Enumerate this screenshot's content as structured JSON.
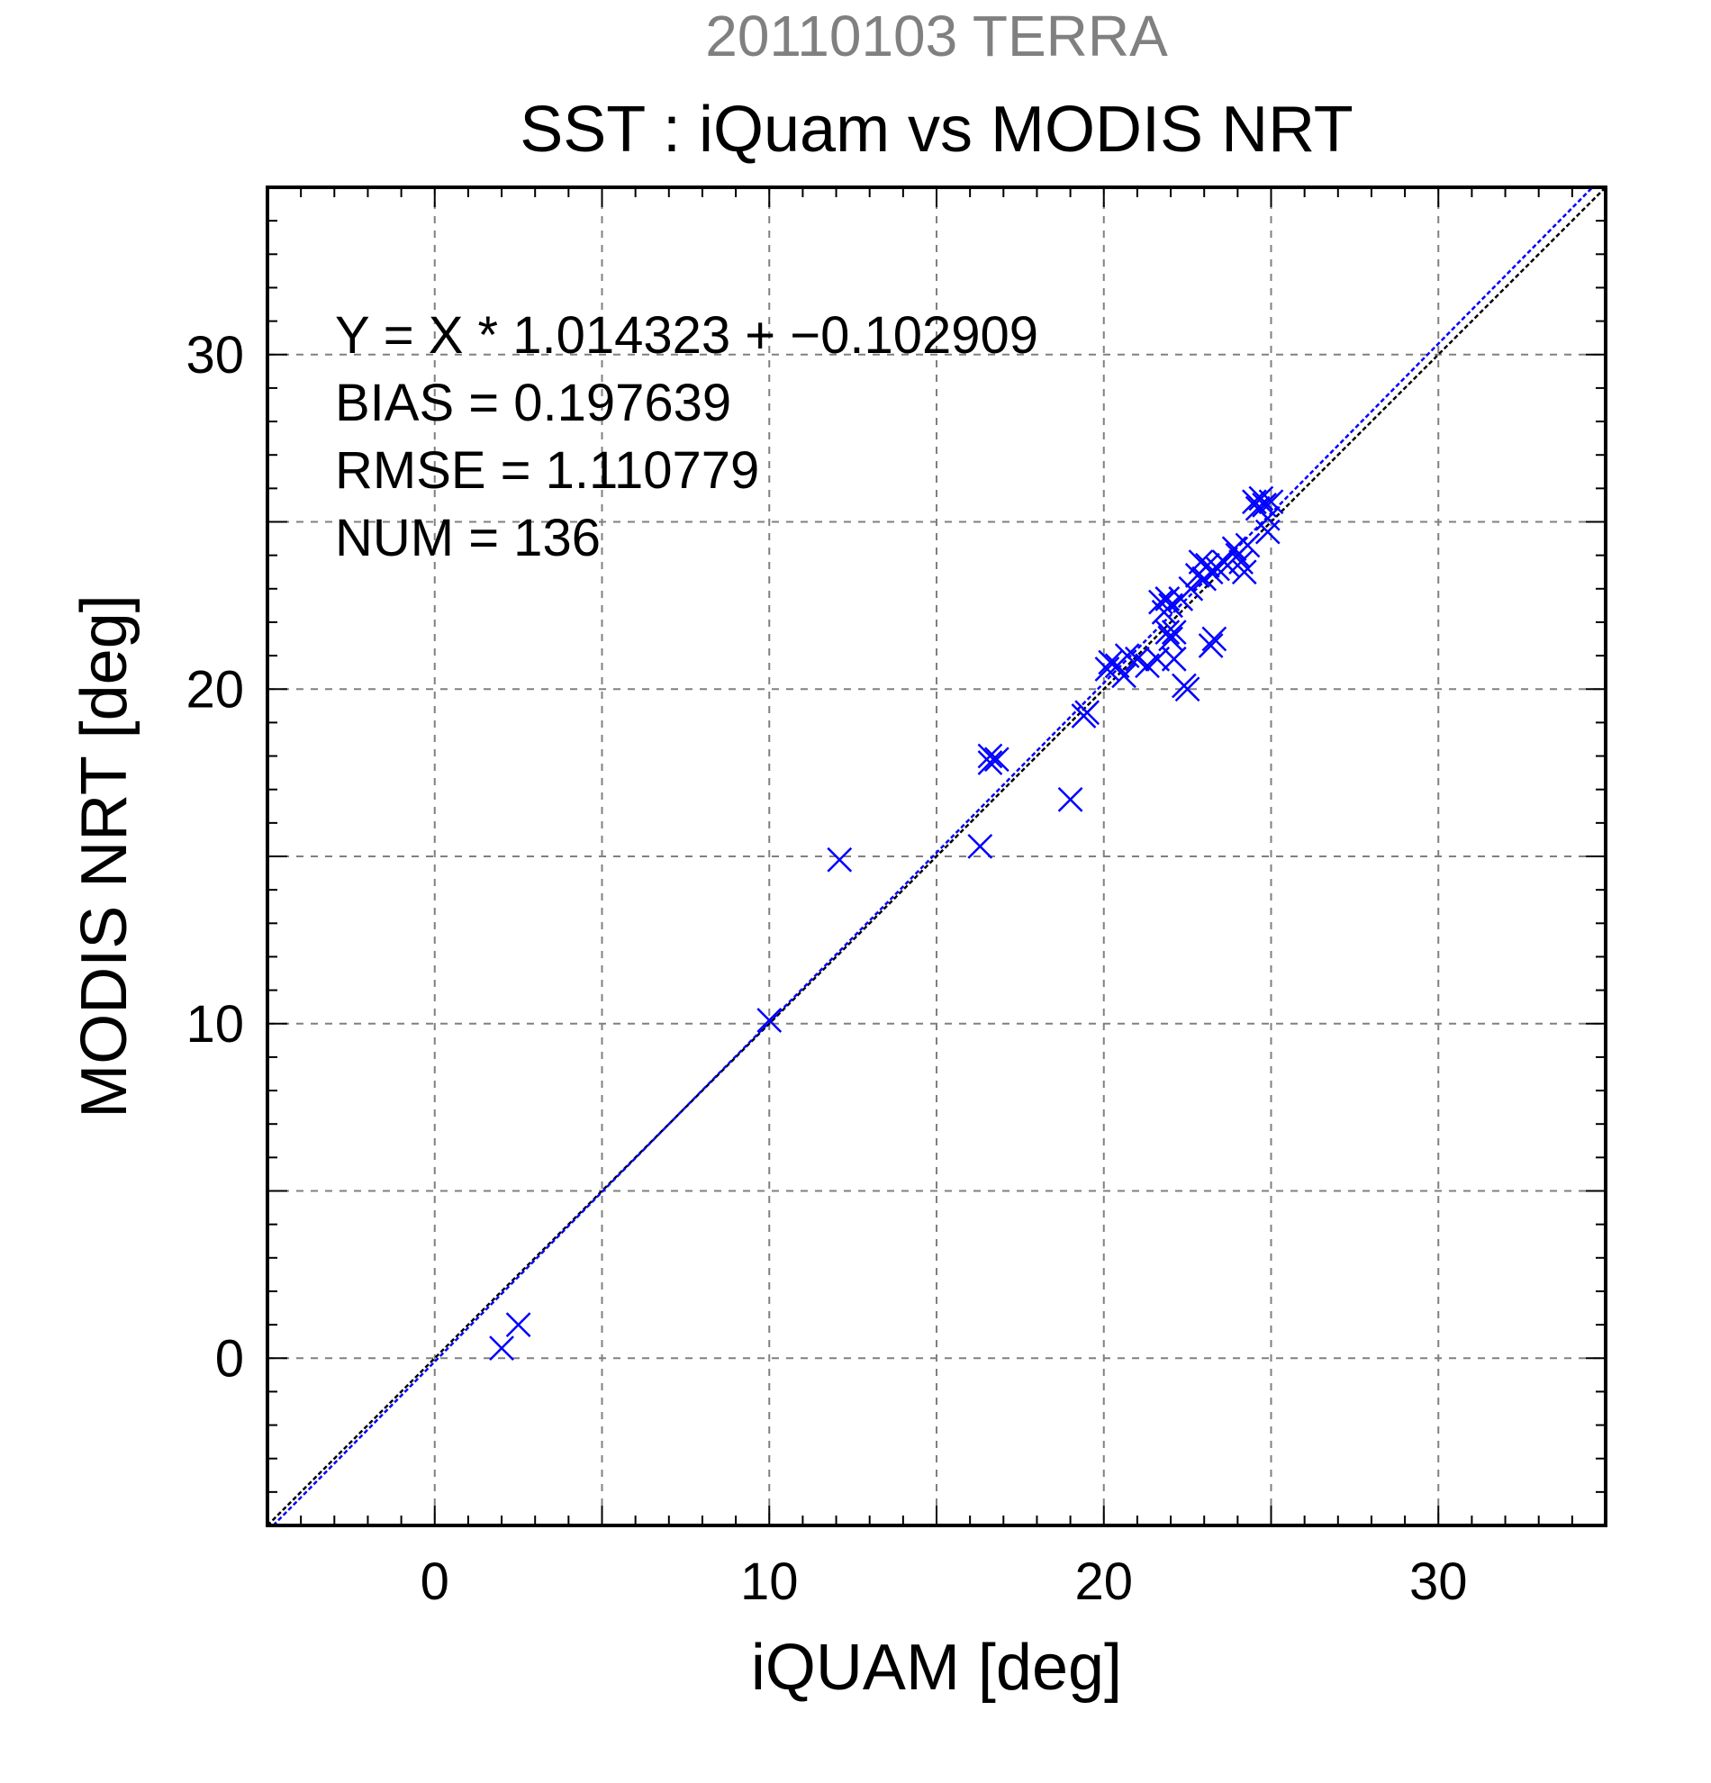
{
  "chart_data": {
    "type": "scatter",
    "title": "SST : iQuam vs MODIS NRT",
    "subtitle": "20110103 TERRA",
    "xlabel": "iQUAM [deg]",
    "ylabel": "MODIS NRT [deg]",
    "xlim": [
      -5,
      35
    ],
    "ylim": [
      -5,
      35
    ],
    "xticks": [
      0,
      10,
      20,
      30
    ],
    "yticks": [
      0,
      10,
      20,
      30
    ],
    "x_tick_labels": [
      "0",
      "10",
      "20",
      "30"
    ],
    "y_tick_labels": [
      "0",
      "10",
      "20",
      "30"
    ],
    "grid": true,
    "colors": {
      "points": "#0000ff",
      "fit_line": "#0000ff",
      "identity_line": "#000000",
      "subtitle": "#808080",
      "grid": "#808080"
    },
    "stats": {
      "equation": "Y = X * 1.014323 + −0.102909",
      "bias": "BIAS = 0.197639",
      "rmse": "RMSE = 1.110779",
      "num": "NUM = 136"
    },
    "fit": {
      "slope": 1.014323,
      "intercept": -0.102909
    },
    "identity": {
      "slope": 1,
      "intercept": 0
    },
    "series": [
      {
        "marker": "x",
        "points": [
          [
            2.0,
            0.3
          ],
          [
            2.5,
            1.0
          ],
          [
            10.0,
            10.1
          ],
          [
            12.1,
            14.9
          ],
          [
            16.3,
            15.3
          ],
          [
            16.6,
            18.0
          ],
          [
            16.6,
            17.8
          ],
          [
            16.8,
            17.9
          ],
          [
            19.0,
            16.7
          ],
          [
            19.4,
            19.2
          ],
          [
            19.5,
            19.3
          ],
          [
            20.1,
            20.6
          ],
          [
            20.2,
            20.8
          ],
          [
            20.4,
            20.7
          ],
          [
            20.6,
            20.4
          ],
          [
            20.7,
            21.0
          ],
          [
            21.0,
            20.9
          ],
          [
            21.3,
            20.7
          ],
          [
            21.6,
            20.9
          ],
          [
            21.7,
            22.6
          ],
          [
            21.8,
            22.3
          ],
          [
            21.9,
            21.7
          ],
          [
            21.9,
            22.7
          ],
          [
            22.0,
            21.5
          ],
          [
            22.0,
            22.5
          ],
          [
            22.1,
            21.7
          ],
          [
            22.1,
            20.9
          ],
          [
            22.3,
            22.7
          ],
          [
            22.4,
            20.1
          ],
          [
            22.5,
            20.0
          ],
          [
            22.6,
            23.0
          ],
          [
            22.8,
            23.4
          ],
          [
            22.9,
            23.8
          ],
          [
            23.0,
            23.3
          ],
          [
            23.1,
            23.7
          ],
          [
            23.2,
            23.5
          ],
          [
            23.2,
            21.3
          ],
          [
            23.3,
            21.5
          ],
          [
            23.4,
            23.6
          ],
          [
            23.6,
            23.8
          ],
          [
            23.7,
            23.7
          ],
          [
            23.9,
            24.2
          ],
          [
            24.0,
            24.0
          ],
          [
            24.1,
            23.8
          ],
          [
            24.2,
            23.5
          ],
          [
            24.3,
            24.3
          ],
          [
            24.5,
            25.6
          ],
          [
            24.6,
            25.4
          ],
          [
            24.7,
            25.7
          ],
          [
            24.8,
            25.5
          ],
          [
            24.9,
            25.1
          ],
          [
            24.9,
            24.7
          ],
          [
            25.0,
            25.6
          ]
        ]
      }
    ]
  }
}
